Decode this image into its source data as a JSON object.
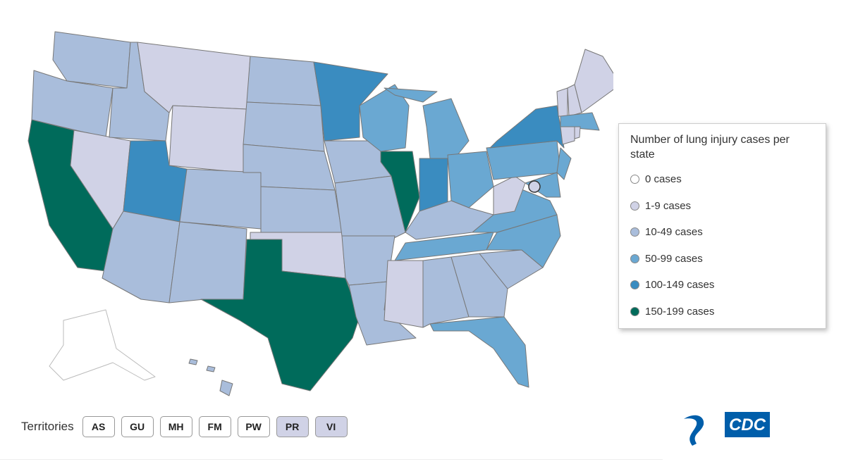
{
  "legend": {
    "title": "Number of lung injury cases per state",
    "items": [
      {
        "label": "0 cases",
        "color": "#ffffff"
      },
      {
        "label": "1-9 cases",
        "color": "#d0d2e6"
      },
      {
        "label": "10-49 cases",
        "color": "#a9bddb"
      },
      {
        "label": "50-99 cases",
        "color": "#6aa8d2"
      },
      {
        "label": "100-149 cases",
        "color": "#3a8cc0"
      },
      {
        "label": "150-199 cases",
        "color": "#006b5b"
      }
    ]
  },
  "territories": {
    "label": "Territories",
    "buttons": [
      "AS",
      "GU",
      "MH",
      "FM",
      "PW",
      "PR",
      "VI"
    ]
  },
  "logo": "CDC"
}
